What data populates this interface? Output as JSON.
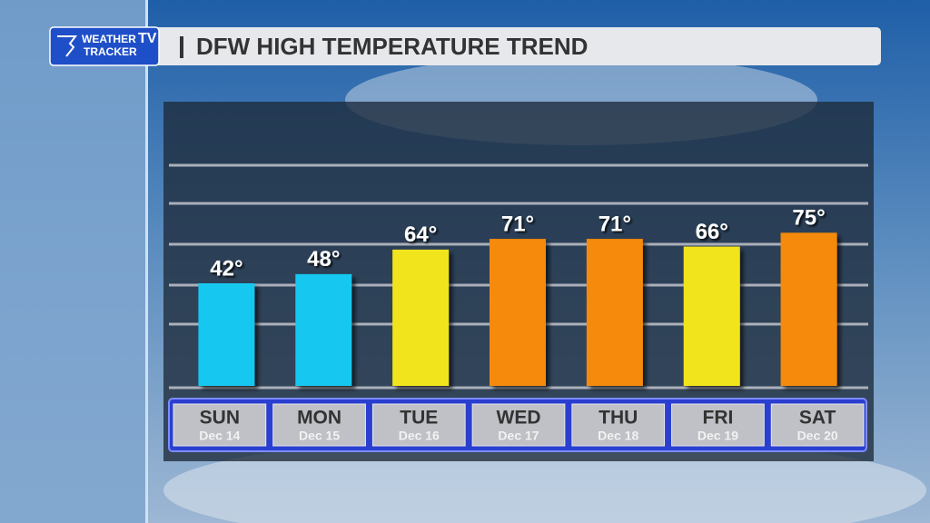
{
  "brand": {
    "line1": "WEATHER",
    "line2": "TRACKER",
    "badge": "TV"
  },
  "chart_data": {
    "type": "bar",
    "title": "DFW HIGH TEMPERATURE TREND",
    "categories": [
      "SUN",
      "MON",
      "TUE",
      "WED",
      "THU",
      "FRI",
      "SAT"
    ],
    "dates": [
      "Dec 14",
      "Dec 15",
      "Dec 16",
      "Dec 17",
      "Dec 18",
      "Dec 19",
      "Dec 20"
    ],
    "values": [
      42,
      48,
      64,
      71,
      71,
      66,
      75
    ],
    "value_labels": [
      "42°",
      "48°",
      "64°",
      "71°",
      "71°",
      "66°",
      "75°"
    ],
    "colors": [
      "#12c8f0",
      "#12c8f0",
      "#f2e41a",
      "#f58a07",
      "#f58a07",
      "#f2e41a",
      "#f58a07"
    ],
    "ylim": [
      -25,
      125
    ]
  }
}
